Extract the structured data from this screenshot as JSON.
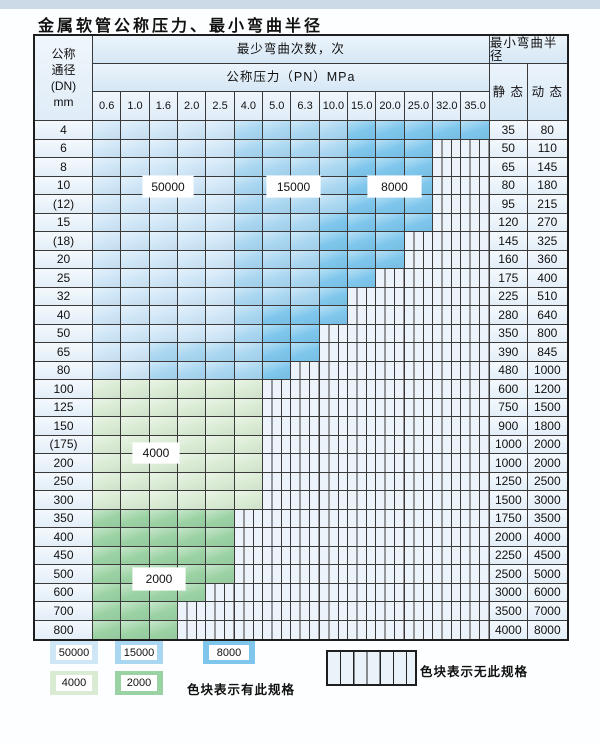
{
  "title": "金属软管公称压力、最小弯曲半径",
  "table": {
    "header": {
      "dn_lines": [
        "公称",
        "通径",
        "(DN)",
        "mm"
      ],
      "bend_cycles": "最少弯曲次数，次",
      "pressure_band": "公称压力（PN）MPa",
      "pressures": [
        "0.6",
        "1.0",
        "1.6",
        "2.0",
        "2.5",
        "4.0",
        "5.0",
        "6.3",
        "10.0",
        "15.0",
        "20.0",
        "25.0",
        "32.0",
        "35.0"
      ],
      "radius": "最小弯曲半径",
      "static_label": "静 态",
      "dynamic_label": "动 态"
    },
    "zone_colors": {
      "50000": "#cfe6f7",
      "15000": "#a9d6f1",
      "8000": "#7ec6ec",
      "4000": "#d9ebd3",
      "2000": "#9bd2a3"
    },
    "zone_codes": {
      "L": "50000",
      "M": "15000",
      "D": "8000",
      "G": "4000",
      "E": "2000",
      "X": "none"
    },
    "rows": [
      {
        "dn": "4",
        "cells": "LLLLLMMMMDDDDD",
        "static": "35",
        "dynamic": "80"
      },
      {
        "dn": "6",
        "cells": "LLLLLMMMMDDDXX",
        "static": "50",
        "dynamic": "110"
      },
      {
        "dn": "8",
        "cells": "LLLLLMMMMDDDXX",
        "static": "65",
        "dynamic": "145"
      },
      {
        "dn": "10",
        "cells": "LLLLLMMMMDDDXX",
        "static": "80",
        "dynamic": "180"
      },
      {
        "dn": "(12)",
        "cells": "LLLLLMMMMDDDXX",
        "static": "95",
        "dynamic": "215"
      },
      {
        "dn": "15",
        "cells": "LLLLLMMMDDDDXX",
        "static": "120",
        "dynamic": "270"
      },
      {
        "dn": "(18)",
        "cells": "LLLLLMMMDDDXXX",
        "static": "145",
        "dynamic": "325"
      },
      {
        "dn": "20",
        "cells": "LLLLLMMMDDDXXX",
        "static": "160",
        "dynamic": "360"
      },
      {
        "dn": "25",
        "cells": "LLLLLMMMDDXXXX",
        "static": "175",
        "dynamic": "400"
      },
      {
        "dn": "32",
        "cells": "LLLLLMMMDXXXXX",
        "static": "225",
        "dynamic": "510"
      },
      {
        "dn": "40",
        "cells": "LLLLLMDDDXXXXX",
        "static": "280",
        "dynamic": "640"
      },
      {
        "dn": "50",
        "cells": "LLLLLMDDXXXXXX",
        "static": "350",
        "dynamic": "800"
      },
      {
        "dn": "65",
        "cells": "LLMMMMDDXXXXXX",
        "static": "390",
        "dynamic": "845"
      },
      {
        "dn": "80",
        "cells": "LLMMMMDXXXXXXX",
        "static": "480",
        "dynamic": "1000"
      },
      {
        "dn": "100",
        "cells": "GGGGGGXXXXXXXX",
        "static": "600",
        "dynamic": "1200"
      },
      {
        "dn": "125",
        "cells": "GGGGGGXXXXXXXX",
        "static": "750",
        "dynamic": "1500"
      },
      {
        "dn": "150",
        "cells": "GGGGGGXXXXXXXX",
        "static": "900",
        "dynamic": "1800"
      },
      {
        "dn": "(175)",
        "cells": "GGGGGGXXXXXXXX",
        "static": "1000",
        "dynamic": "2000"
      },
      {
        "dn": "200",
        "cells": "GGGGGGXXXXXXXX",
        "static": "1000",
        "dynamic": "2000"
      },
      {
        "dn": "250",
        "cells": "GGGGGGXXXXXXXX",
        "static": "1250",
        "dynamic": "2500"
      },
      {
        "dn": "300",
        "cells": "GGGGGGXXXXXXXX",
        "static": "1500",
        "dynamic": "3000"
      },
      {
        "dn": "350",
        "cells": "EEEEEXXXXXXXXX",
        "static": "1750",
        "dynamic": "3500"
      },
      {
        "dn": "400",
        "cells": "EEEEEXXXXXXXXX",
        "static": "2000",
        "dynamic": "4000"
      },
      {
        "dn": "450",
        "cells": "EEEEEXXXXXXXXX",
        "static": "2250",
        "dynamic": "4500"
      },
      {
        "dn": "500",
        "cells": "EEEEEXXXXXXXXX",
        "static": "2500",
        "dynamic": "5000"
      },
      {
        "dn": "600",
        "cells": "EEEEXXXXXXXXXX",
        "static": "3000",
        "dynamic": "6000"
      },
      {
        "dn": "700",
        "cells": "EEEXXXXXXXXXXX",
        "static": "3500",
        "dynamic": "7000"
      },
      {
        "dn": "800",
        "cells": "EEEXXXXXXXXXXX",
        "static": "4000",
        "dynamic": "8000"
      }
    ],
    "overlay_labels": {
      "l50000": "50000",
      "l15000": "15000",
      "l8000": "8000",
      "l4000": "4000",
      "l2000": "2000"
    }
  },
  "legend": {
    "swatches": {
      "s50000": "50000",
      "s15000": "15000",
      "s8000": "8000",
      "s4000": "4000",
      "s2000": "2000"
    },
    "has_spec_text": "色块表示有此规格",
    "no_spec_text": "色块表示无此规格"
  }
}
